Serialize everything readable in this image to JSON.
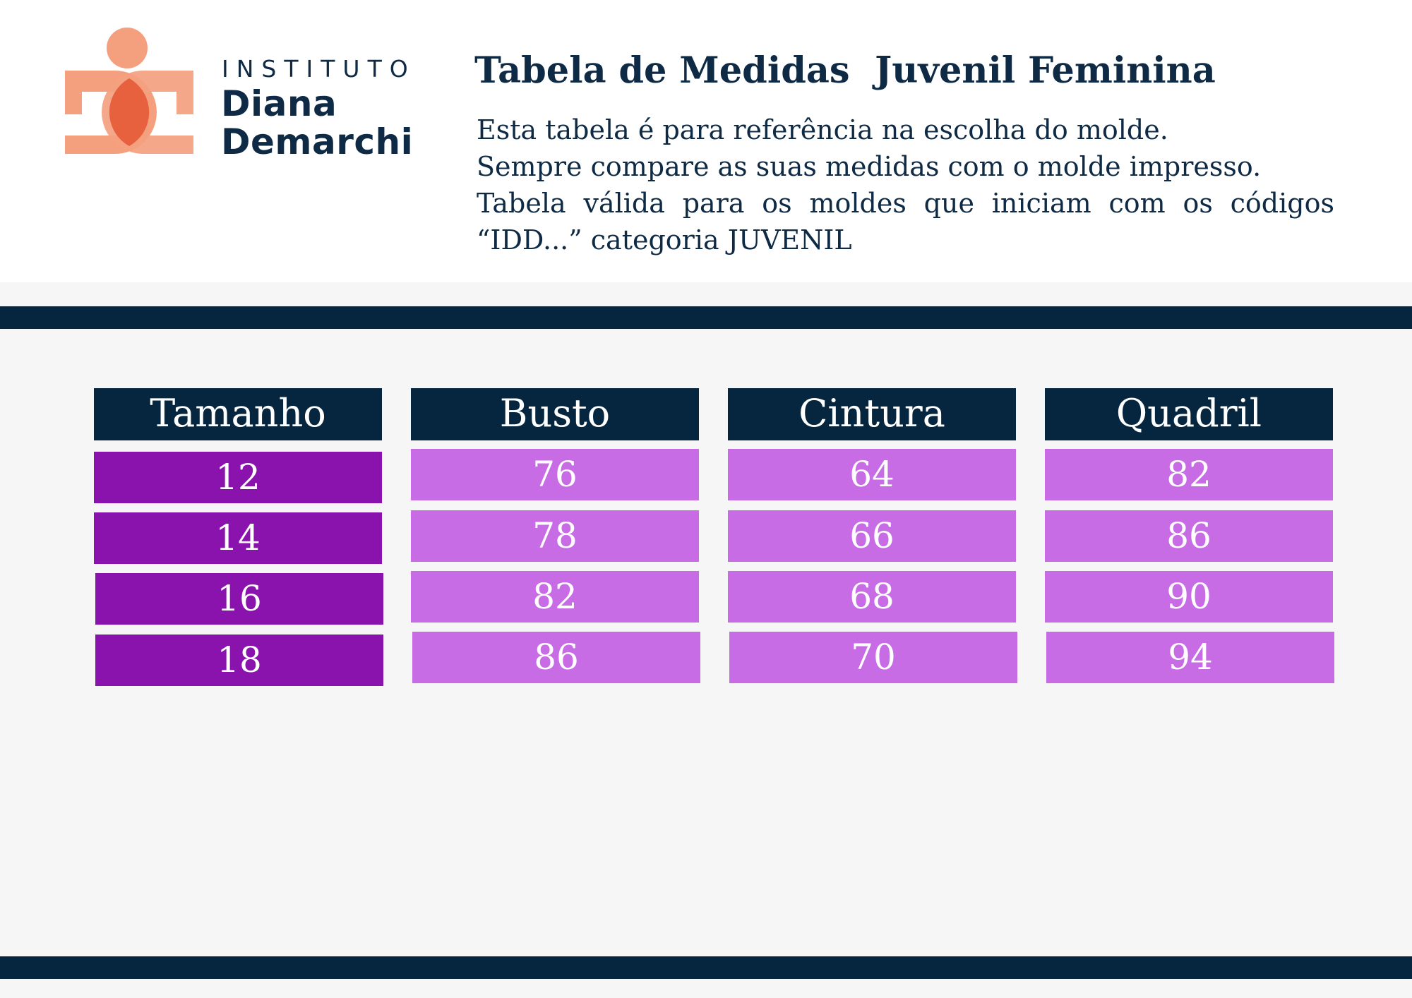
{
  "logo": {
    "line1": "INSTITUTO",
    "line2": "Diana",
    "line3": "Demarchi",
    "colors": {
      "peach": "#f4a07f",
      "overlap": "#e8613f"
    }
  },
  "title": "Tabela de Medidas  Juvenil Feminina",
  "description": {
    "line1": "Esta tabela é para referência na escolha do molde.",
    "line2": "Sempre compare as suas medidas com o molde impresso.",
    "line3": "Tabela válida para os moldes que iniciam com os códigos",
    "line4": "“IDD...” categoria JUVENIL"
  },
  "table": {
    "headers": [
      "Tamanho",
      "Busto",
      "Cintura",
      "Quadril"
    ],
    "rows": [
      [
        "12",
        "76",
        "64",
        "82"
      ],
      [
        "14",
        "78",
        "66",
        "86"
      ],
      [
        "16",
        "82",
        "68",
        "90"
      ],
      [
        "18",
        "86",
        "70",
        "94"
      ]
    ]
  },
  "colors": {
    "navy": "#06263f",
    "size_cell": "#8a13ae",
    "value_cell": "#c86ce6",
    "background": "#f6f6f6"
  }
}
